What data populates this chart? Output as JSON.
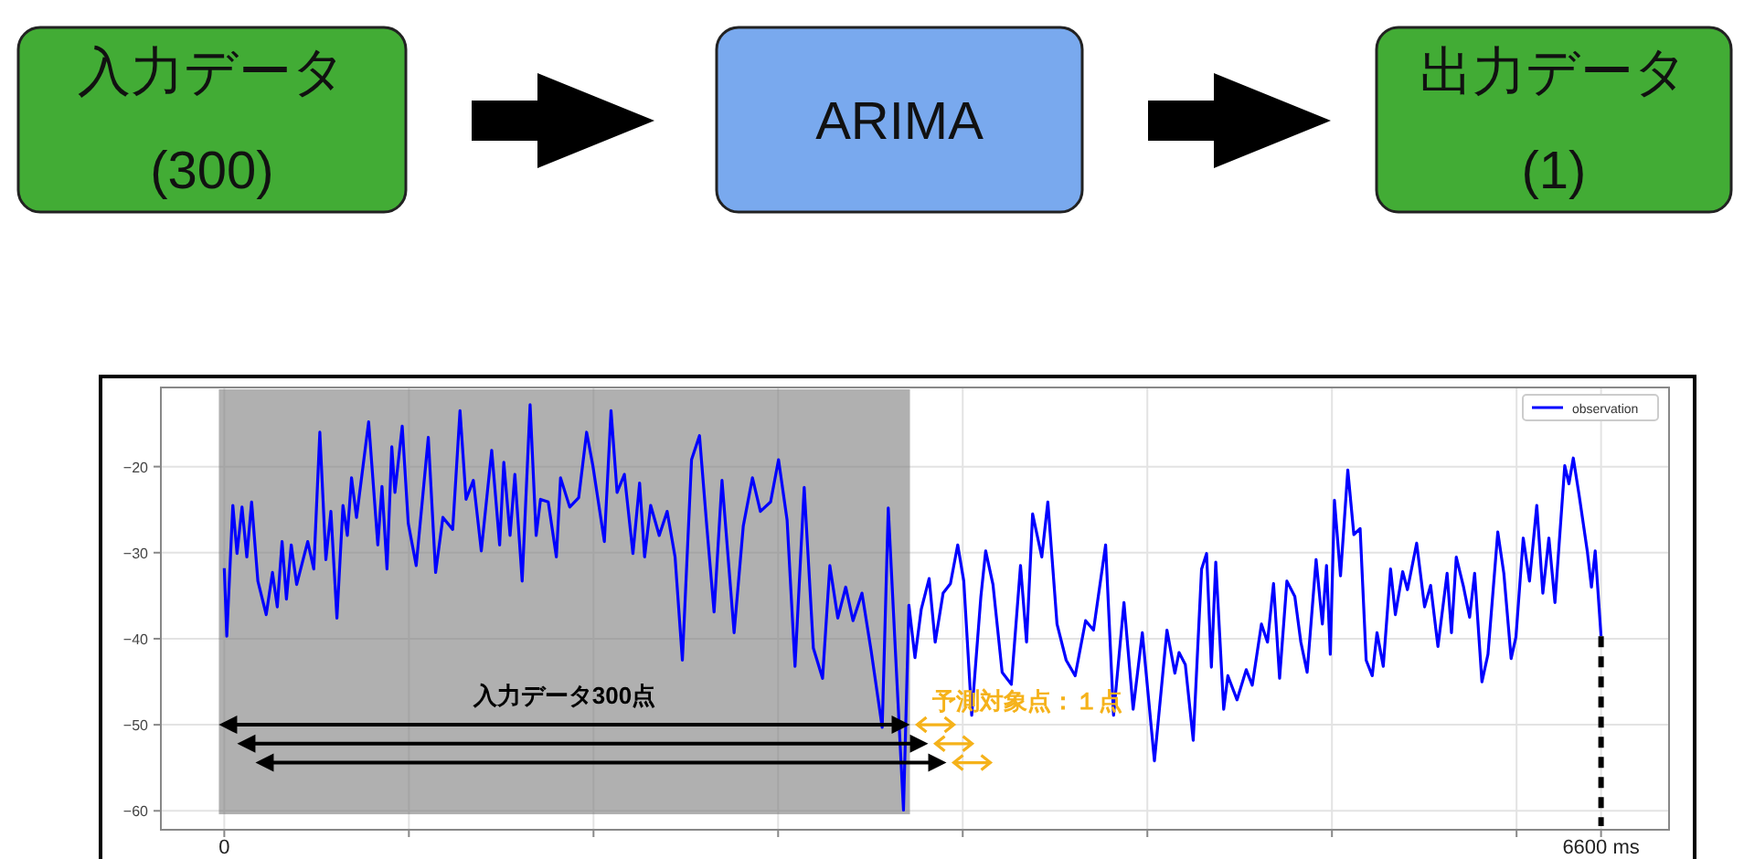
{
  "chart_data": [
    {
      "type": "other",
      "annotations": [
        "入力データ\n(300)",
        "ARIMA",
        "出力データ\n(1)"
      ]
    },
    {
      "type": "line",
      "x": [
        0,
        12,
        41,
        61,
        85,
        108,
        131,
        161,
        201,
        231,
        254,
        277,
        298,
        321,
        347,
        400,
        429,
        458,
        487,
        511,
        540,
        569,
        590,
        610,
        634,
        692,
        736,
        756,
        780,
        803,
        818,
        853,
        882,
        920,
        978,
        1013,
        1048,
        1095,
        1130,
        1159,
        1194,
        1232,
        1282,
        1320,
        1340,
        1370,
        1393,
        1428,
        1466,
        1495,
        1516,
        1553,
        1592,
        1612,
        1656,
        1699,
        1737,
        1767,
        1822,
        1854,
        1883,
        1918,
        1959,
        1991,
        2015,
        2044,
        2085,
        2123,
        2161,
        2196,
        2240,
        2278,
        2313,
        2348,
        2386,
        2444,
        2488,
        2532,
        2570,
        2619,
        2657,
        2698,
        2736,
        2780,
        2824,
        2868,
        2903,
        2941,
        2979,
        3014,
        3057,
        3101,
        3154,
        3183,
        3218,
        3256,
        3282,
        3311,
        3341,
        3379,
        3408,
        3446,
        3481,
        3516,
        3545,
        3583,
        3627,
        3650,
        3685,
        3729,
        3773,
        3817,
        3846,
        3875,
        3919,
        3948,
        3992,
        4036,
        4079,
        4129,
        4167,
        4225,
        4263,
        4313,
        4357,
        4401,
        4459,
        4519,
        4557,
        4577,
        4607,
        4645,
        4685,
        4709,
        4732,
        4753,
        4791,
        4811,
        4855,
        4899,
        4928,
        4972,
        5001,
        5030,
        5059,
        5094,
        5132,
        5161,
        5191,
        5234,
        5264,
        5284,
        5302,
        5322,
        5351,
        5386,
        5415,
        5445,
        5474,
        5503,
        5526,
        5556,
        5591,
        5614,
        5649,
        5672,
        5716,
        5754,
        5783,
        5818,
        5862,
        5883,
        5906,
        5941,
        5970,
        5994,
        6029,
        6058,
        6105,
        6134,
        6169,
        6192,
        6227,
        6257,
        6292,
        6321,
        6350,
        6379,
        6426,
        6446,
        6467,
        6496,
        6534,
        6554,
        6572,
        6600
      ],
      "series": [
        {
          "name": "observation",
          "color": "#0000ff",
          "values": [
            -31.8,
            -39.7,
            -24.5,
            -30.1,
            -24.7,
            -30.5,
            -24.1,
            -33.3,
            -37.2,
            -32.3,
            -36.3,
            -28.7,
            -35.4,
            -29.1,
            -33.7,
            -28.7,
            -31.9,
            -16.0,
            -30.8,
            -25.2,
            -37.6,
            -24.5,
            -28.0,
            -21.3,
            -25.9,
            -14.8,
            -29.1,
            -22.3,
            -31.9,
            -17.7,
            -23.0,
            -15.3,
            -26.6,
            -31.5,
            -16.6,
            -32.3,
            -25.9,
            -27.3,
            -13.5,
            -23.8,
            -21.6,
            -29.8,
            -18.1,
            -29.1,
            -19.5,
            -28.0,
            -20.9,
            -33.3,
            -12.8,
            -28.0,
            -23.8,
            -24.1,
            -30.5,
            -21.3,
            -24.7,
            -23.6,
            -16.0,
            -19.9,
            -28.7,
            -13.5,
            -23.0,
            -20.9,
            -30.1,
            -21.9,
            -30.5,
            -24.5,
            -28.0,
            -25.2,
            -30.5,
            -42.5,
            -19.2,
            -16.4,
            -26.9,
            -36.9,
            -21.6,
            -39.3,
            -26.9,
            -21.3,
            -25.2,
            -24.1,
            -19.2,
            -26.2,
            -43.2,
            -22.4,
            -41.1,
            -44.6,
            -31.5,
            -37.6,
            -34.0,
            -37.9,
            -34.7,
            -41.4,
            -50.3,
            -24.8,
            -41.8,
            -59.9,
            -36.1,
            -42.2,
            -36.6,
            -33.0,
            -40.4,
            -34.7,
            -33.6,
            -29.1,
            -33.3,
            -48.9,
            -35.1,
            -29.8,
            -33.7,
            -43.9,
            -45.3,
            -31.5,
            -40.4,
            -25.5,
            -30.5,
            -24.1,
            -38.3,
            -42.5,
            -44.3,
            -37.9,
            -39.0,
            -29.1,
            -48.9,
            -35.8,
            -48.2,
            -39.3,
            -54.2,
            -39.0,
            -44.0,
            -41.6,
            -43.0,
            -51.8,
            -31.9,
            -30.1,
            -43.3,
            -31.1,
            -48.2,
            -44.3,
            -47.1,
            -43.6,
            -45.4,
            -38.3,
            -40.4,
            -33.6,
            -44.6,
            -33.3,
            -35.1,
            -40.4,
            -43.9,
            -30.8,
            -38.3,
            -31.5,
            -41.8,
            -23.9,
            -32.7,
            -20.4,
            -27.9,
            -27.2,
            -42.5,
            -44.3,
            -39.3,
            -43.2,
            -31.9,
            -37.2,
            -32.2,
            -34.3,
            -28.9,
            -36.3,
            -33.8,
            -40.9,
            -32.4,
            -39.3,
            -30.5,
            -34.0,
            -37.5,
            -32.4,
            -45.0,
            -41.8,
            -27.6,
            -32.4,
            -42.3,
            -39.8,
            -28.3,
            -33.3,
            -24.5,
            -34.7,
            -28.3,
            -35.8,
            -19.9,
            -22.0,
            -19.0,
            -23.5,
            -29.8,
            -34.0,
            -29.8,
            -39.7
          ]
        }
      ],
      "xlim": [
        -304,
        6926
      ],
      "ylim": [
        -62.2,
        -10.8
      ],
      "xticks": [
        {
          "value": 0,
          "label": "0"
        },
        {
          "value": 885,
          "label": null
        },
        {
          "value": 1770,
          "label": null
        },
        {
          "value": 2655,
          "label": null
        },
        {
          "value": 3540,
          "label": null
        },
        {
          "value": 4425,
          "label": null
        },
        {
          "value": 5310,
          "label": null
        },
        {
          "value": 6195,
          "label": null
        },
        {
          "value": 6600,
          "label": "6600 ms"
        }
      ],
      "yticks": [
        {
          "value": -60,
          "label": "−60"
        },
        {
          "value": -50,
          "label": "−50"
        },
        {
          "value": -40,
          "label": "−40"
        },
        {
          "value": -30,
          "label": "−30"
        },
        {
          "value": -20,
          "label": "−20"
        }
      ],
      "grid": true,
      "legend": "top right",
      "bands": [
        {
          "axis": "x",
          "from": -26,
          "to": 3287,
          "label": "入力データ300点",
          "color": "#808080"
        }
      ],
      "ref_lines": [
        {
          "axis": "x",
          "value": 6600,
          "color": "#000000",
          "line_style": "dashed"
        }
      ],
      "annotations": [
        "予測対象点：１点"
      ]
    }
  ]
}
